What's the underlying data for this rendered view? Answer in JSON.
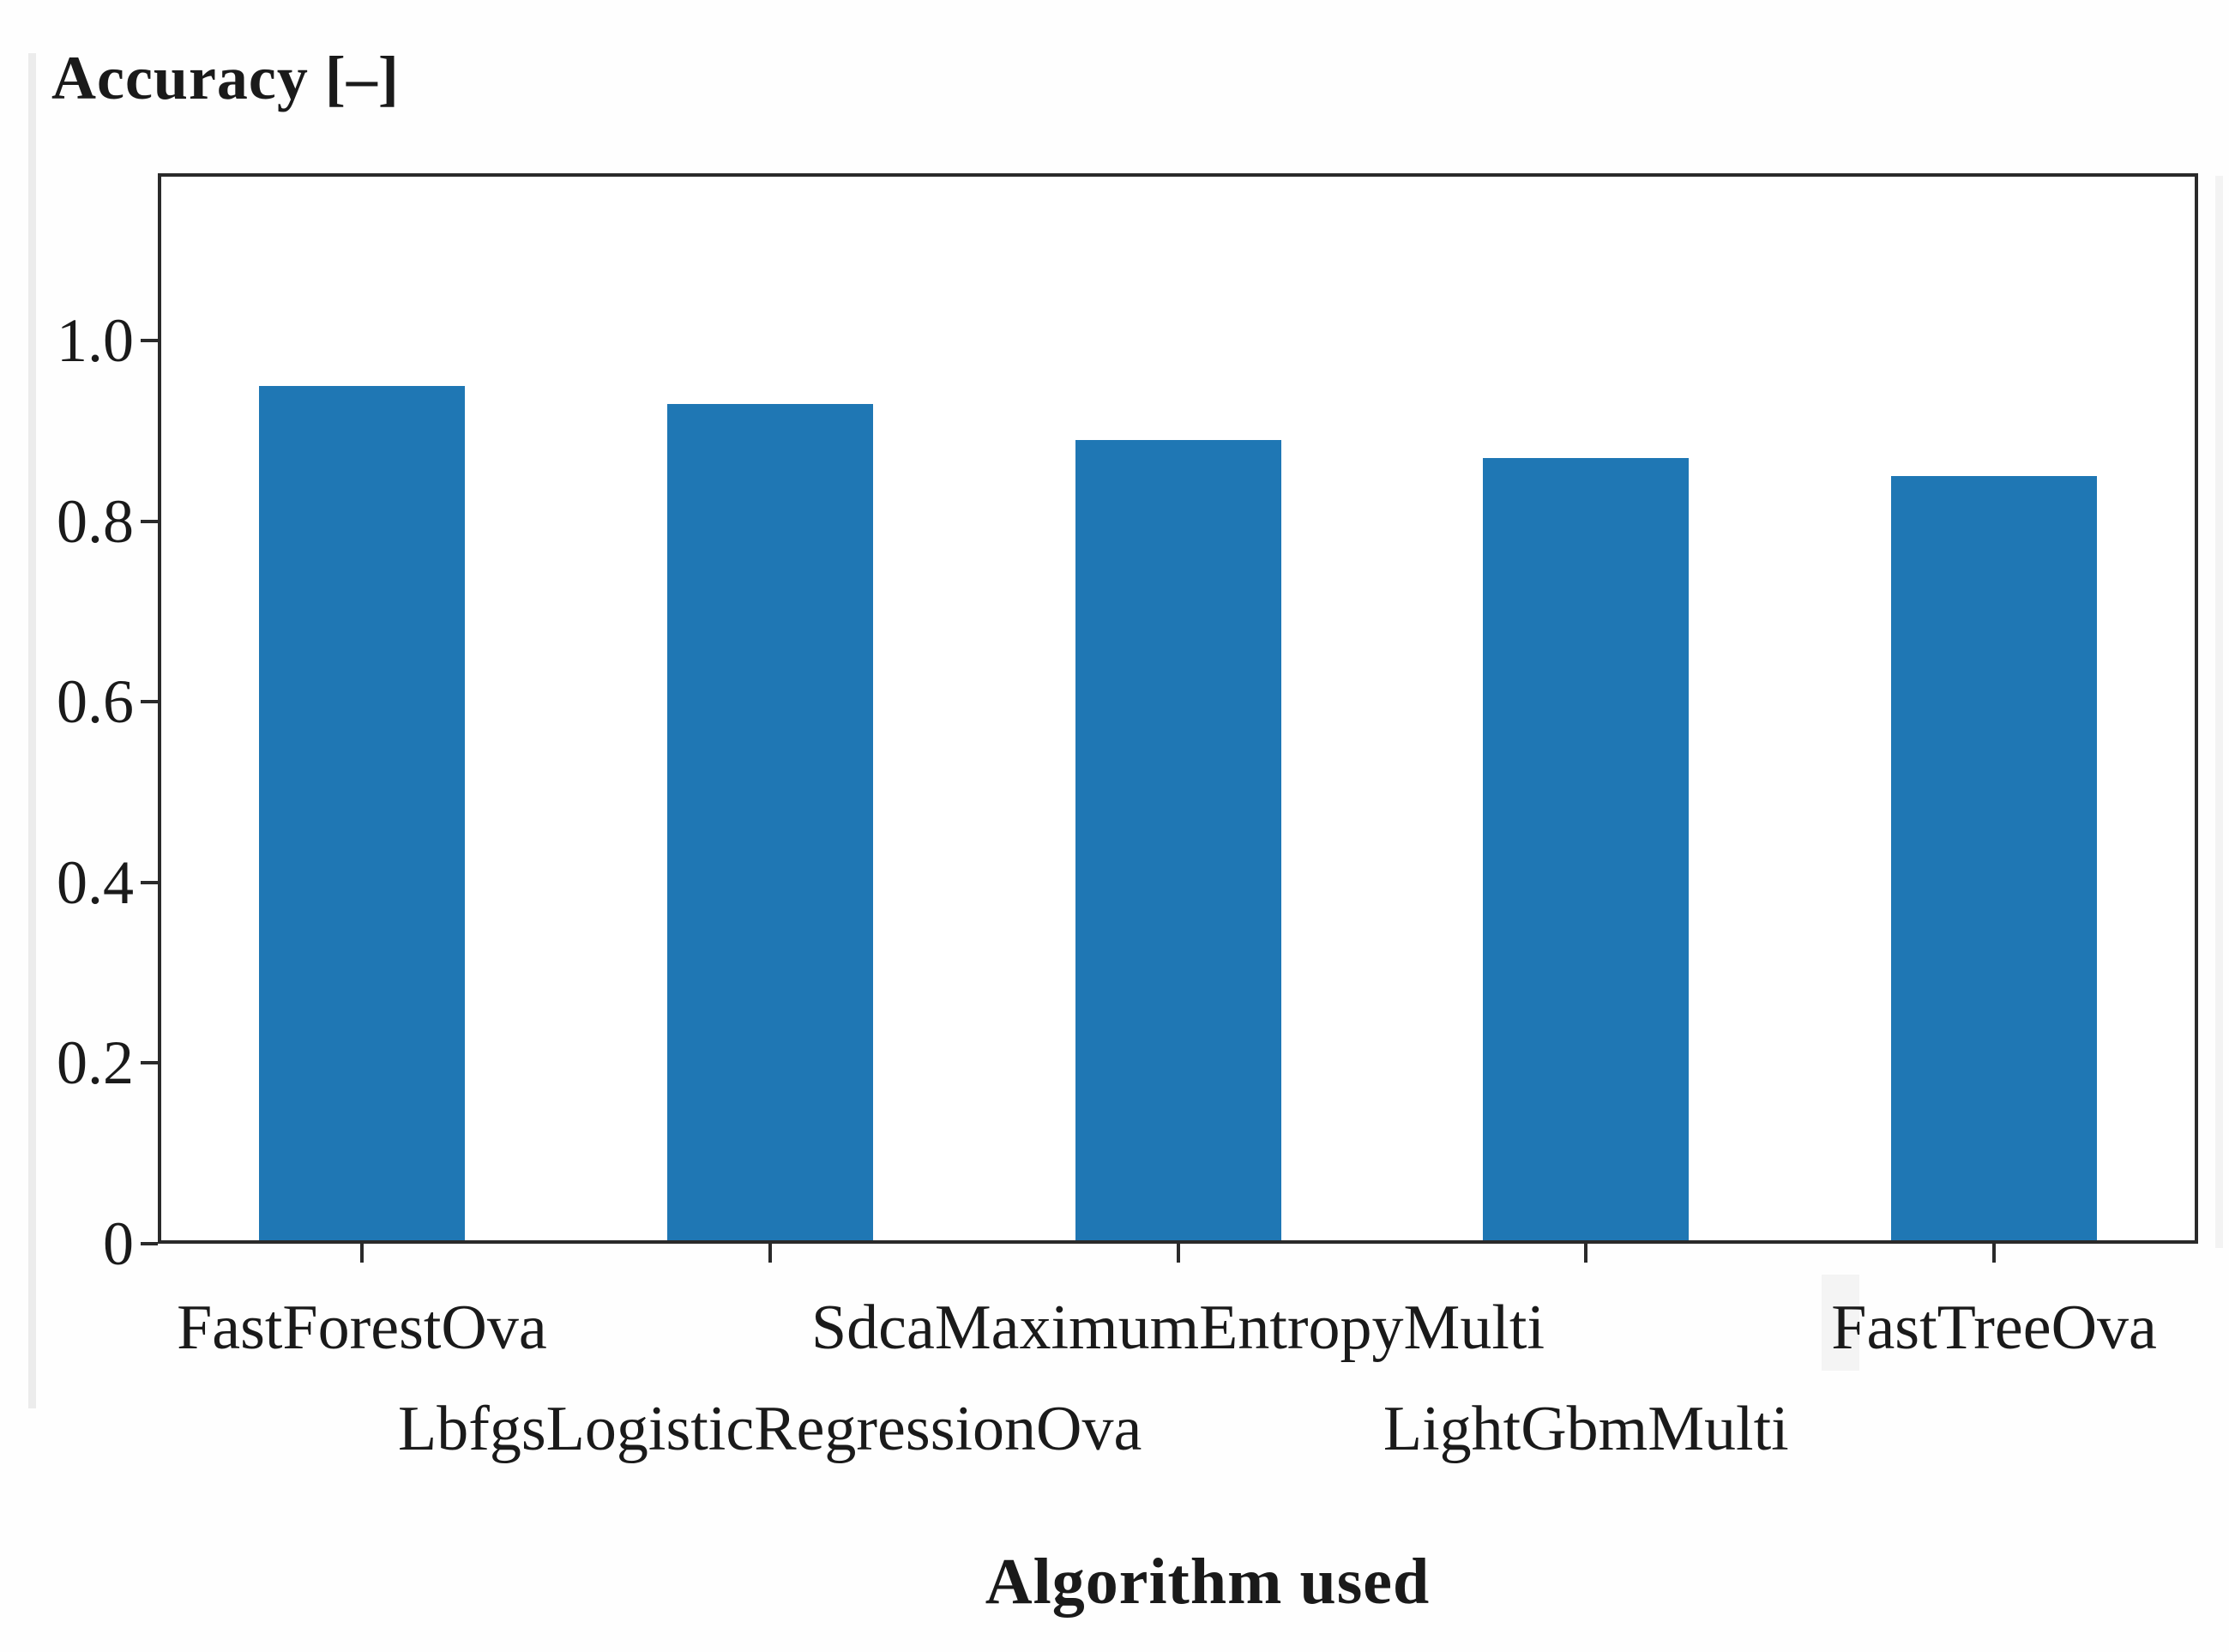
{
  "chart_data": {
    "type": "bar",
    "title": "Accuracy [–]",
    "xlabel": "Algorithm used",
    "ylabel": "Accuracy [–]",
    "categories": [
      "FastForestOva",
      "LbfgsLogisticRegressionOva",
      "SdcaMaximumEntropyMulti",
      "LightGbmMulti",
      "FastTreeOva"
    ],
    "values": [
      0.95,
      0.93,
      0.89,
      0.87,
      0.85
    ],
    "category_label_rows": [
      0,
      1,
      0,
      1,
      0
    ],
    "ytick_values": [
      0,
      0.2,
      0.4,
      0.6,
      0.8,
      1.0
    ],
    "ytick_labels": [
      "0",
      "0.2",
      "0.4",
      "0.6",
      "0.8",
      "1.0"
    ],
    "ylim": [
      0,
      1.19
    ],
    "grid": false,
    "legend": false,
    "bar_color": "#1f77b4",
    "axis_color": "#2a2a2a",
    "text_color": "#1a1a1a"
  }
}
